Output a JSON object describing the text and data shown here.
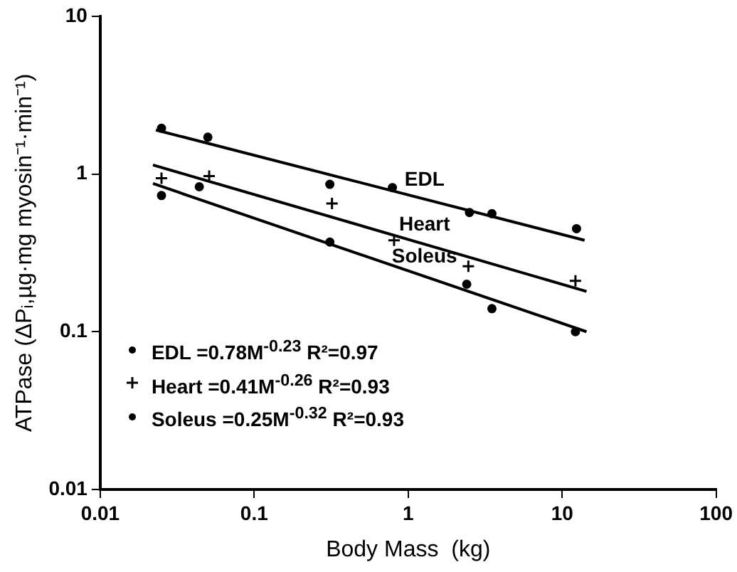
{
  "chart_data": {
    "type": "scatter",
    "xlabel": "Body Mass  (kg)",
    "ylabel": "ATPase (ΔPᵢ,µg·mg myosin⁻¹·min⁻¹)",
    "log": "xy",
    "grid": false,
    "legend": "bottom left",
    "xlim": [
      0.01,
      100
    ],
    "xticks": [
      0.01,
      0.1,
      1,
      10,
      100
    ],
    "ylim": [
      0.01,
      10
    ],
    "yticks": [
      0.01,
      0.1,
      1,
      10
    ],
    "series": [
      {
        "name": "EDL =0.78M$^{-0.23}$  R²=0.97",
        "marker": "circle",
        "color": "#000000",
        "x": [
          0.025,
          0.05,
          0.31,
          0.79,
          2.5,
          3.5,
          12.4
        ],
        "values": [
          1.95,
          1.71,
          0.86,
          0.82,
          0.57,
          0.56,
          0.45
        ]
      },
      {
        "name": "Heart =0.41M$^{-0.26}$  R²=0.93",
        "marker": "cross",
        "color": "#000000",
        "x": [
          0.025,
          0.051,
          0.32,
          0.81,
          2.46,
          12.2
        ],
        "values": [
          0.94,
          0.97,
          0.65,
          0.38,
          0.26,
          0.21
        ]
      },
      {
        "name": "Soleus =0.25M$^{-0.32}$  R²=0.93",
        "marker": "circle",
        "color": "#000000",
        "x": [
          0.025,
          0.044,
          0.31,
          2.4,
          3.5,
          12.2
        ],
        "values": [
          0.73,
          0.83,
          0.37,
          0.2,
          0.14,
          0.1
        ]
      },
      {
        "name": "EDL",
        "type": "line",
        "marker": "none",
        "color": "#000000",
        "x": [
          0.023,
          14
        ],
        "values": [
          1.9,
          0.38
        ]
      },
      {
        "name": "Heart",
        "type": "line",
        "marker": "none",
        "color": "#000000",
        "x": [
          0.022,
          14.4
        ],
        "values": [
          1.14,
          0.18
        ]
      },
      {
        "name": "Soleus",
        "type": "line",
        "marker": "none",
        "color": "#000000",
        "x": [
          0.022,
          14.4
        ],
        "values": [
          0.87,
          0.1
        ]
      }
    ]
  }
}
